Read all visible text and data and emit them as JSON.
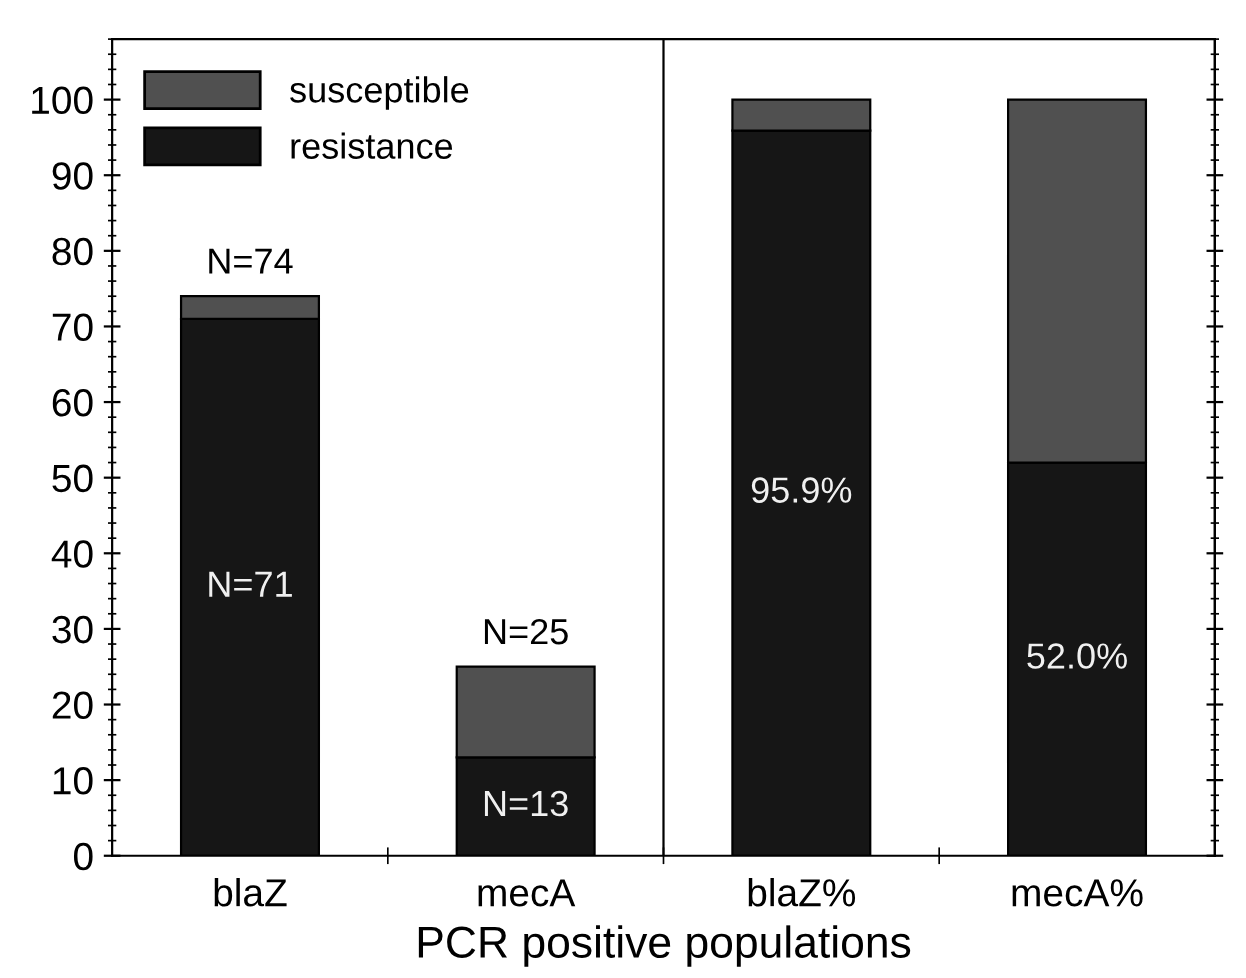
{
  "chart_data": {
    "type": "bar",
    "stacked": true,
    "xlabel": "PCR positive populations",
    "categories": [
      "blaZ",
      "mecA",
      "blaZ%",
      "mecA%"
    ],
    "series": [
      {
        "name": "resistance",
        "color": "#161616",
        "values": [
          71,
          13,
          95.9,
          52.0
        ],
        "value_labels": [
          "N=71",
          "N=13",
          "95.9%",
          "52.0%"
        ]
      },
      {
        "name": "susceptible",
        "color": "#505050",
        "values": [
          3,
          12,
          4.1,
          48.0
        ]
      }
    ],
    "totals": [
      "N=74",
      "N=25",
      null,
      null
    ],
    "ylim": [
      0,
      108
    ],
    "yticks": [
      0,
      10,
      20,
      30,
      40,
      50,
      60,
      70,
      80,
      90,
      100
    ],
    "grid": false,
    "legend": "top left"
  }
}
